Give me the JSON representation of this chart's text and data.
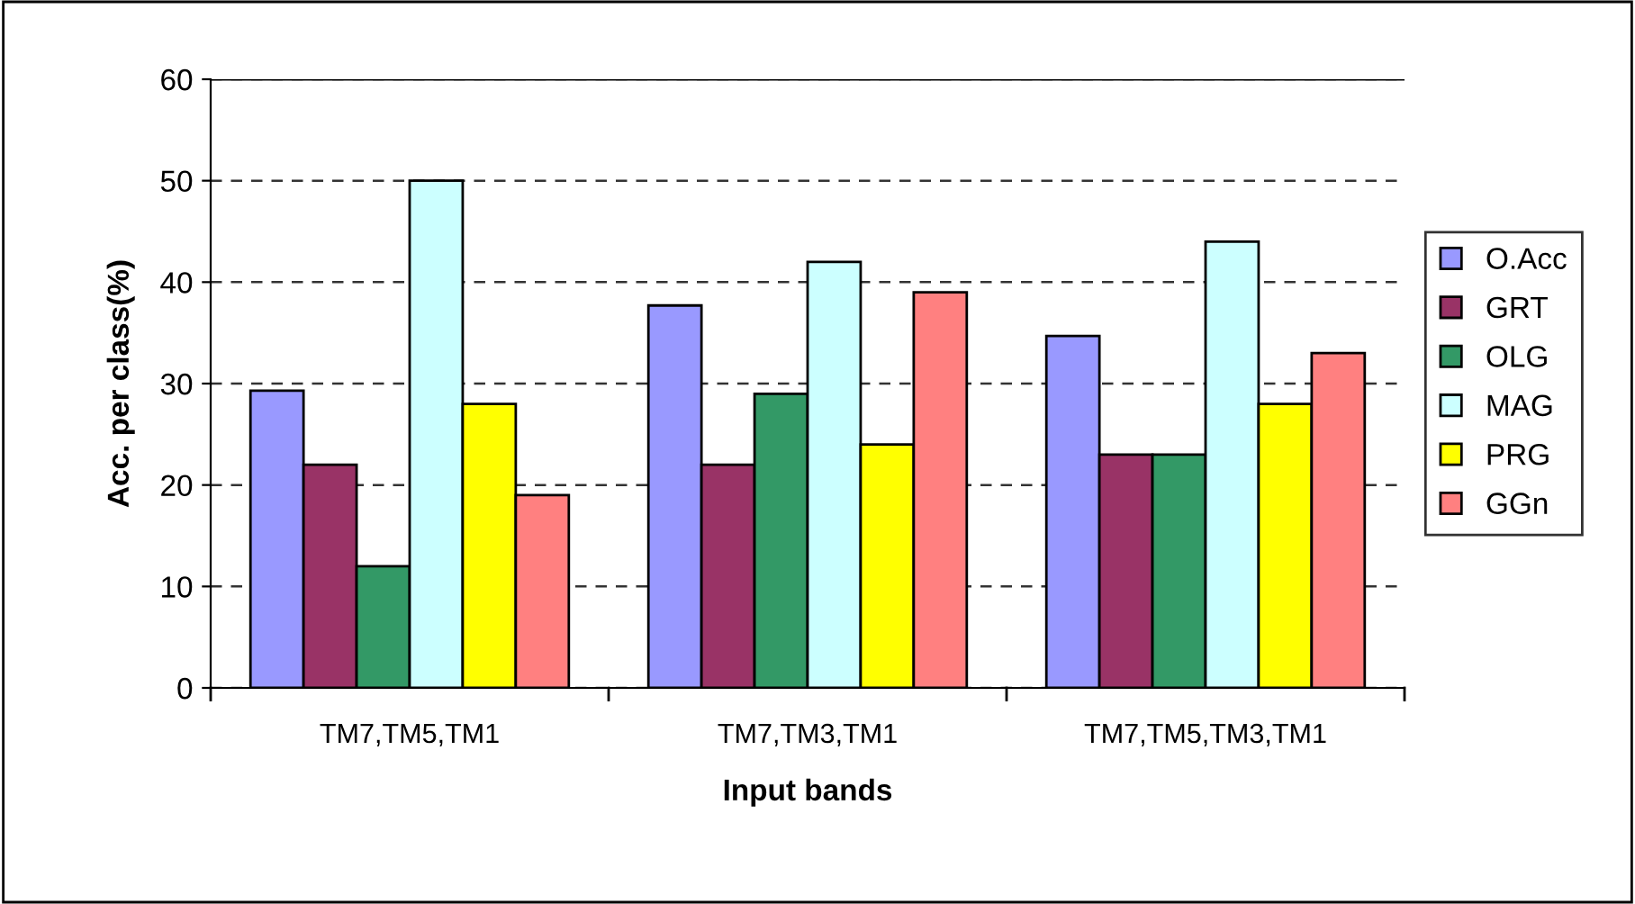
{
  "chart_data": {
    "type": "bar",
    "xlabel": "Input bands",
    "ylabel": "Acc. per class(%)",
    "categories": [
      "TM7,TM5,TM1",
      "TM7,TM3,TM1",
      "TM7,TM5,TM3,TM1"
    ],
    "series": [
      {
        "name": "O.Acc",
        "color": "#9999ff",
        "values": [
          29.3,
          37.7,
          34.7
        ]
      },
      {
        "name": "GRT",
        "color": "#993366",
        "values": [
          22,
          22,
          23
        ]
      },
      {
        "name": "OLG",
        "color": "#339966",
        "values": [
          12,
          29,
          23
        ]
      },
      {
        "name": "MAG",
        "color": "#ccffff",
        "values": [
          50,
          42,
          44
        ]
      },
      {
        "name": "PRG",
        "color": "#ffff00",
        "values": [
          28,
          24,
          28
        ]
      },
      {
        "name": "GGn",
        "color": "#ff8080",
        "values": [
          19,
          39,
          33
        ]
      }
    ],
    "ylim": [
      0,
      60
    ],
    "yticks": [
      0,
      10,
      20,
      30,
      40,
      50,
      60
    ],
    "grid": "y",
    "legend": "right"
  }
}
